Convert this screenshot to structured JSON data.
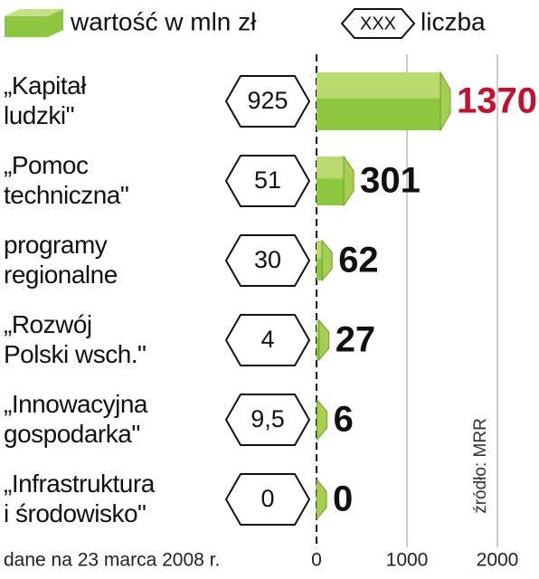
{
  "chart_data": {
    "type": "bar",
    "orientation": "horizontal",
    "categories": [
      "„Kapitał\nludzki\"",
      "„Pomoc\ntechniczna\"",
      "programy\nregionalne",
      "„Rozwój\nPolski wsch.\"",
      "„Innowacyjna\ngospodarka\"",
      "„Infrastruktura\ni środowisko\""
    ],
    "series": [
      {
        "name": "wartość w mln zł",
        "color": "#8dc63f",
        "values": [
          1370,
          301,
          62,
          27,
          6,
          0
        ],
        "value_label_colors": [
          "#c8102e",
          "#111111",
          "#111111",
          "#111111",
          "#111111",
          "#111111"
        ]
      },
      {
        "name": "liczba",
        "legend_sample": "XXX",
        "values": [
          925,
          51,
          30,
          4,
          9.5,
          0
        ],
        "value_labels": [
          "925",
          "51",
          "30",
          "4",
          "9,5",
          "0"
        ]
      }
    ],
    "xlim": [
      0,
      2000
    ],
    "xticks": [
      0,
      1000,
      2000
    ],
    "grid": true,
    "source": "źródło: MRR",
    "note": "dane na 23 marca 2008 r."
  }
}
